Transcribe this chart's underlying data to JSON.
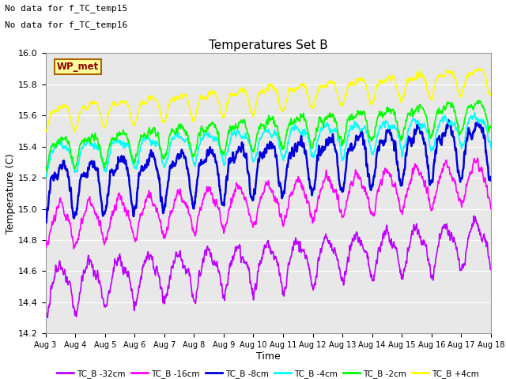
{
  "title": "Temperatures Set B",
  "xlabel": "Time",
  "ylabel": "Temperature (C)",
  "ylim": [
    14.2,
    16.0
  ],
  "annotations": [
    "No data for f_TC_temp15",
    "No data for f_TC_temp16"
  ],
  "wp_met_label": "WP_met",
  "legend_entries": [
    "TC_B -32cm",
    "TC_B -16cm",
    "TC_B -8cm",
    "TC_B -4cm",
    "TC_B -2cm",
    "TC_B +4cm"
  ],
  "series_colors": [
    "#bb00ff",
    "#ff00ff",
    "#0000dd",
    "#00ffff",
    "#00ff00",
    "#ffff00"
  ],
  "n_points": 1500,
  "days": 15.0,
  "tick_dates": [
    "Aug 3",
    "Aug 4",
    "Aug 5",
    "Aug 6",
    "Aug 7",
    "Aug 8",
    "Aug 9",
    "Aug 10",
    "Aug 11",
    "Aug 12",
    "Aug 13",
    "Aug 14",
    "Aug 15",
    "Aug 16",
    "Aug 17",
    "Aug 18"
  ],
  "series_base": [
    14.5,
    14.9,
    15.15,
    15.35,
    15.38,
    15.6
  ],
  "series_trend": [
    0.3,
    0.3,
    0.28,
    0.18,
    0.25,
    0.25
  ],
  "series_amp": [
    0.2,
    0.18,
    0.22,
    0.12,
    0.12,
    0.1
  ],
  "series_noise": [
    0.03,
    0.025,
    0.03,
    0.02,
    0.02,
    0.015
  ],
  "series_linewidth": [
    1.2,
    1.2,
    1.8,
    1.2,
    1.2,
    1.2
  ]
}
